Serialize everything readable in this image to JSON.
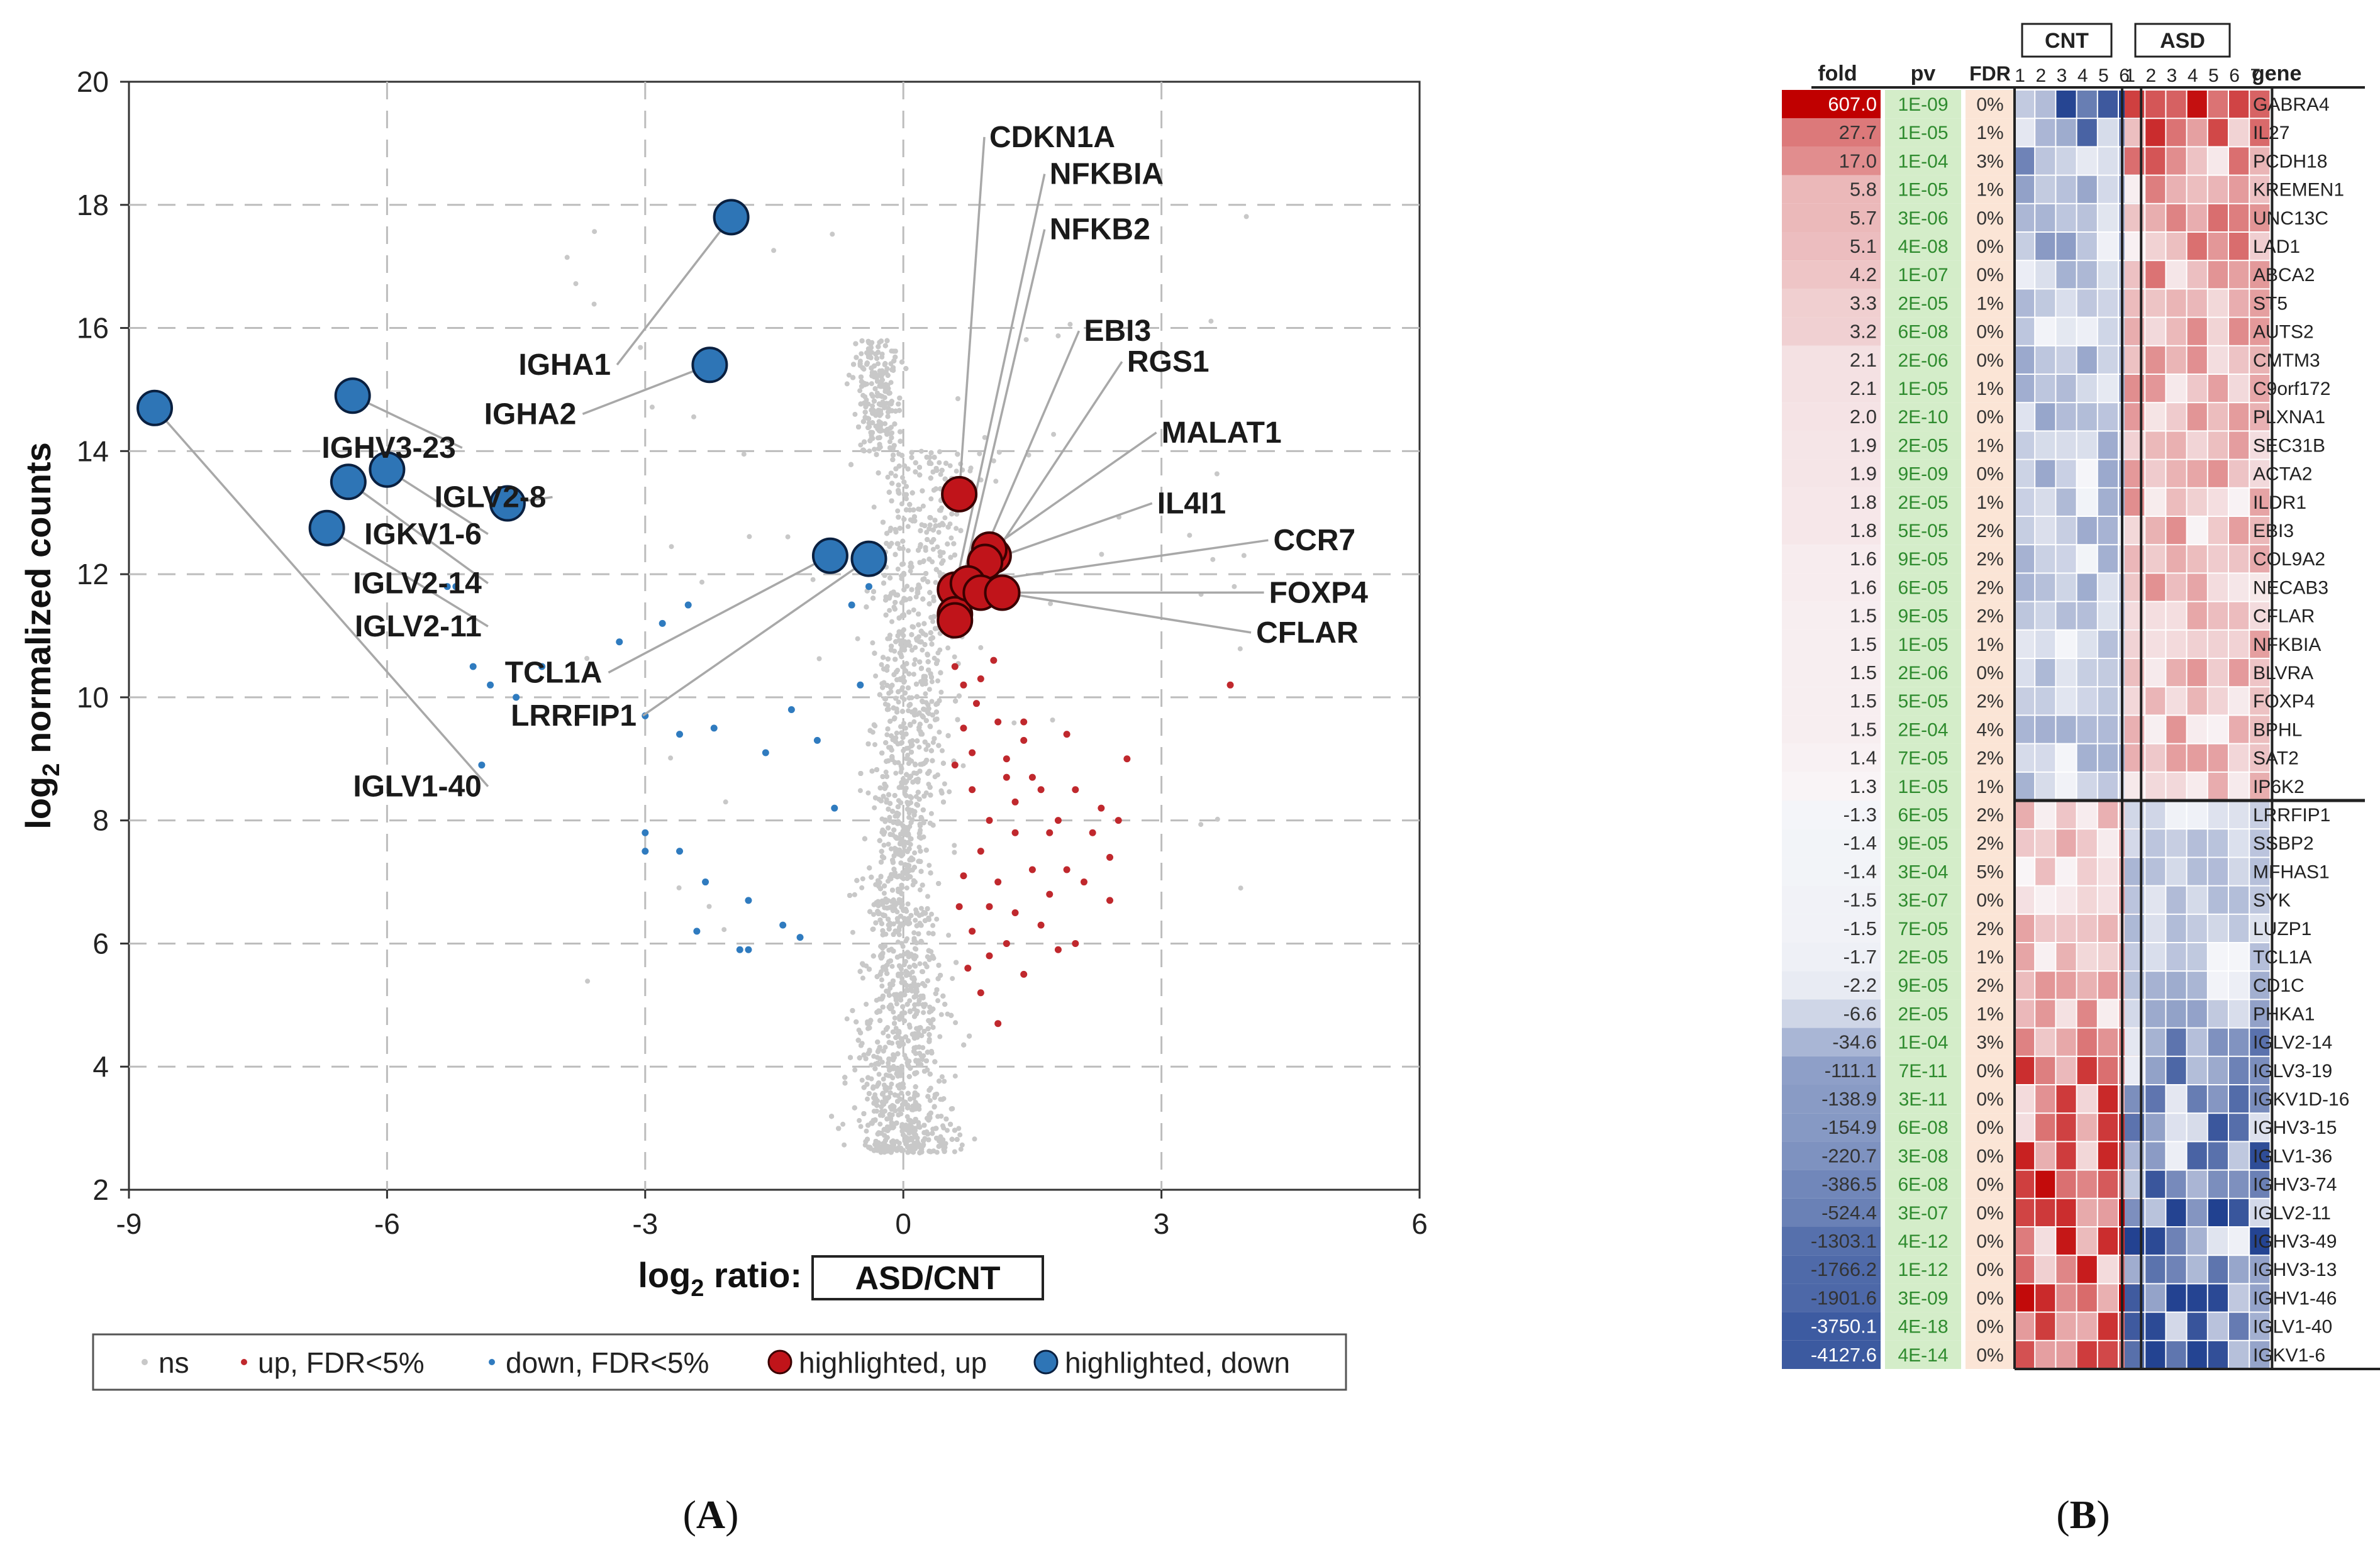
{
  "panel_a": {
    "panel_label": "A",
    "chart_data": {
      "type": "scatter",
      "title": "",
      "xlabel_prefix": "log",
      "xlabel_sub": "2",
      "xlabel_rest": " ratio:",
      "xlabel_box": "ASD/CNT",
      "ylabel_prefix": "log",
      "ylabel_sub": "2",
      "ylabel_rest": " normalized counts",
      "xlim": [
        -9,
        6
      ],
      "ylim": [
        2,
        20
      ],
      "xticks": [
        "-9",
        "-6",
        "-3",
        "0",
        "3",
        "6"
      ],
      "yticks": [
        "2",
        "4",
        "6",
        "8",
        "10",
        "12",
        "14",
        "16",
        "18",
        "20"
      ],
      "grid": true,
      "legend_position": "bottom",
      "legend": [
        "ns",
        "up, FDR<5%",
        "down, FDR<5%",
        "highlighted, up",
        "highlighted, down"
      ],
      "colors": {
        "ns": "#c8c8c8",
        "up": "#c0282d",
        "down": "#2f7bbf",
        "hl_up": "#c0141a",
        "hl_down": "#2e75b6"
      },
      "highlighted_down": [
        {
          "gene": "IGHA1",
          "x": -2.0,
          "y": 17.8,
          "lx": -3.4,
          "ly": 15.3
        },
        {
          "gene": "IGHA2",
          "x": -2.25,
          "y": 15.4,
          "lx": -3.8,
          "ly": 14.5
        },
        {
          "gene": "IGHV3-23",
          "x": -6.4,
          "y": 14.9,
          "lx": -5.2,
          "ly": 13.95
        },
        {
          "gene": "IGLV2-8",
          "x": -4.6,
          "y": 13.15,
          "lx": -4.15,
          "ly": 13.15
        },
        {
          "gene": "IGKV1-6",
          "x": -6.0,
          "y": 13.7,
          "lx": -4.9,
          "ly": 12.55
        },
        {
          "gene": "IGLV2-14",
          "x": -6.45,
          "y": 13.5,
          "lx": -4.9,
          "ly": 11.75
        },
        {
          "gene": "IGLV2-11",
          "x": -6.7,
          "y": 12.75,
          "lx": -4.9,
          "ly": 11.05
        },
        {
          "gene": "TCL1A",
          "x": -0.85,
          "y": 12.3,
          "lx": -3.5,
          "ly": 10.3
        },
        {
          "gene": "LRRFIP1",
          "x": -0.4,
          "y": 12.25,
          "lx": -3.1,
          "ly": 9.6
        },
        {
          "gene": "IGLV1-40",
          "x": -8.7,
          "y": 14.7,
          "lx": -4.9,
          "ly": 8.45
        }
      ],
      "highlighted_up": [
        {
          "gene": "CDKN1A",
          "x": 0.65,
          "y": 13.3,
          "lx": 1.0,
          "ly": 19.0
        },
        {
          "gene": "NFKBIA",
          "x": 0.6,
          "y": 11.75,
          "lx": 1.7,
          "ly": 18.4
        },
        {
          "gene": "NFKB2",
          "x": 0.6,
          "y": 11.35,
          "lx": 1.7,
          "ly": 17.5
        },
        {
          "gene": "EBI3",
          "x": 0.6,
          "y": 11.25,
          "lx": 2.1,
          "ly": 15.85
        },
        {
          "gene": "RGS1",
          "x": 1.05,
          "y": 12.3,
          "lx": 2.6,
          "ly": 15.35
        },
        {
          "gene": "MALAT1",
          "x": 1.0,
          "y": 12.4,
          "lx": 3.0,
          "ly": 14.2
        },
        {
          "gene": "IL4I1",
          "x": 0.95,
          "y": 12.2,
          "lx": 2.95,
          "ly": 13.05
        },
        {
          "gene": "CCR7",
          "x": 0.75,
          "y": 11.85,
          "lx": 4.3,
          "ly": 12.45
        },
        {
          "gene": "FOXP4",
          "x": 0.9,
          "y": 11.7,
          "lx": 4.25,
          "ly": 11.6
        },
        {
          "gene": "CFLAR",
          "x": 1.15,
          "y": 11.7,
          "lx": 4.1,
          "ly": 10.95
        }
      ],
      "up_points": [
        [
          0.6,
          10.5
        ],
        [
          0.7,
          10.2
        ],
        [
          0.9,
          10.3
        ],
        [
          1.1,
          9.6
        ],
        [
          1.2,
          9.0
        ],
        [
          1.4,
          9.6
        ],
        [
          0.8,
          8.5
        ],
        [
          1.0,
          8.0
        ],
        [
          1.3,
          8.3
        ],
        [
          1.6,
          8.5
        ],
        [
          1.8,
          8.0
        ],
        [
          2.0,
          8.5
        ],
        [
          2.2,
          7.8
        ],
        [
          1.5,
          7.2
        ],
        [
          1.7,
          6.8
        ],
        [
          2.4,
          6.7
        ],
        [
          2.5,
          8.0
        ],
        [
          3.8,
          10.2
        ],
        [
          0.7,
          9.5
        ],
        [
          0.9,
          7.5
        ],
        [
          1.1,
          7.0
        ],
        [
          1.3,
          6.5
        ],
        [
          0.8,
          6.2
        ],
        [
          1.0,
          5.8
        ],
        [
          1.2,
          6.0
        ],
        [
          1.4,
          5.5
        ],
        [
          1.1,
          4.7
        ],
        [
          0.9,
          5.2
        ],
        [
          2.0,
          6.0
        ],
        [
          1.9,
          7.2
        ],
        [
          2.3,
          8.2
        ],
        [
          2.6,
          9.0
        ],
        [
          0.6,
          8.9
        ],
        [
          0.8,
          9.1
        ],
        [
          1.5,
          8.7
        ],
        [
          1.7,
          7.8
        ],
        [
          2.1,
          7.0
        ],
        [
          1.3,
          7.8
        ],
        [
          1.6,
          6.3
        ],
        [
          0.7,
          7.1
        ],
        [
          0.65,
          6.6
        ],
        [
          0.75,
          5.6
        ],
        [
          1.2,
          8.7
        ],
        [
          1.4,
          9.3
        ],
        [
          1.9,
          9.4
        ],
        [
          0.85,
          9.9
        ],
        [
          1.05,
          10.6
        ],
        [
          2.4,
          7.4
        ],
        [
          1.8,
          5.9
        ],
        [
          1.0,
          6.6
        ]
      ],
      "down_points": [
        [
          -5.3,
          11.8
        ],
        [
          -5.2,
          11.8
        ],
        [
          -5.0,
          10.5
        ],
        [
          -4.8,
          10.2
        ],
        [
          -4.5,
          10.0
        ],
        [
          -4.2,
          10.5
        ],
        [
          -3.3,
          10.9
        ],
        [
          -2.8,
          11.2
        ],
        [
          -3.0,
          9.7
        ],
        [
          -2.6,
          9.4
        ],
        [
          -2.2,
          9.5
        ],
        [
          -1.3,
          9.8
        ],
        [
          -0.5,
          10.2
        ],
        [
          -0.6,
          11.5
        ],
        [
          -0.4,
          11.8
        ],
        [
          -0.8,
          8.2
        ],
        [
          -1.0,
          9.3
        ],
        [
          -4.9,
          8.9
        ],
        [
          -3.0,
          7.8
        ],
        [
          -3.0,
          7.5
        ],
        [
          -2.6,
          7.5
        ],
        [
          -2.3,
          7.0
        ],
        [
          -1.8,
          6.7
        ],
        [
          -1.4,
          6.3
        ],
        [
          -1.2,
          6.1
        ],
        [
          -1.8,
          5.9
        ],
        [
          -1.9,
          5.9
        ],
        [
          -2.4,
          6.2
        ],
        [
          -2.5,
          11.5
        ],
        [
          -1.6,
          9.1
        ]
      ],
      "ns_points_count": 9000
    }
  },
  "panel_b": {
    "panel_label": "B",
    "chart_data": {
      "type": "heatmap",
      "group_labels": [
        "CNT",
        "ASD"
      ],
      "col_headers": {
        "fold": "fold",
        "pv": "pv",
        "fdr": "FDR",
        "gene": "gene"
      },
      "cnt_samples": [
        "1",
        "2",
        "3",
        "4",
        "5",
        "6"
      ],
      "asd_samples": [
        "1",
        "2",
        "3",
        "4",
        "5",
        "6",
        "7"
      ],
      "up_rows": [
        {
          "fold": "607.0",
          "pv": "1E-09",
          "fdr": "0%",
          "gene": "GABRA4"
        },
        {
          "fold": "27.7",
          "pv": "1E-05",
          "fdr": "1%",
          "gene": "IL27"
        },
        {
          "fold": "17.0",
          "pv": "1E-04",
          "fdr": "3%",
          "gene": "PCDH18"
        },
        {
          "fold": "5.8",
          "pv": "1E-05",
          "fdr": "1%",
          "gene": "KREMEN1"
        },
        {
          "fold": "5.7",
          "pv": "3E-06",
          "fdr": "0%",
          "gene": "UNC13C"
        },
        {
          "fold": "5.1",
          "pv": "4E-08",
          "fdr": "0%",
          "gene": "LAD1"
        },
        {
          "fold": "4.2",
          "pv": "1E-07",
          "fdr": "0%",
          "gene": "ABCA2"
        },
        {
          "fold": "3.3",
          "pv": "2E-05",
          "fdr": "1%",
          "gene": "ST5"
        },
        {
          "fold": "3.2",
          "pv": "6E-08",
          "fdr": "0%",
          "gene": "AUTS2"
        },
        {
          "fold": "2.1",
          "pv": "2E-06",
          "fdr": "0%",
          "gene": "CMTM3"
        },
        {
          "fold": "2.1",
          "pv": "1E-05",
          "fdr": "1%",
          "gene": "C9orf172"
        },
        {
          "fold": "2.0",
          "pv": "2E-10",
          "fdr": "0%",
          "gene": "PLXNA1"
        },
        {
          "fold": "1.9",
          "pv": "2E-05",
          "fdr": "1%",
          "gene": "SEC31B"
        },
        {
          "fold": "1.9",
          "pv": "9E-09",
          "fdr": "0%",
          "gene": "ACTA2"
        },
        {
          "fold": "1.8",
          "pv": "2E-05",
          "fdr": "1%",
          "gene": "ILDR1"
        },
        {
          "fold": "1.8",
          "pv": "5E-05",
          "fdr": "2%",
          "gene": "EBI3"
        },
        {
          "fold": "1.6",
          "pv": "9E-05",
          "fdr": "2%",
          "gene": "COL9A2"
        },
        {
          "fold": "1.6",
          "pv": "6E-05",
          "fdr": "2%",
          "gene": "NECAB3"
        },
        {
          "fold": "1.5",
          "pv": "9E-05",
          "fdr": "2%",
          "gene": "CFLAR"
        },
        {
          "fold": "1.5",
          "pv": "1E-05",
          "fdr": "1%",
          "gene": "NFKBIA"
        },
        {
          "fold": "1.5",
          "pv": "2E-06",
          "fdr": "0%",
          "gene": "BLVRA"
        },
        {
          "fold": "1.5",
          "pv": "5E-05",
          "fdr": "2%",
          "gene": "FOXP4"
        },
        {
          "fold": "1.5",
          "pv": "2E-04",
          "fdr": "4%",
          "gene": "BPHL"
        },
        {
          "fold": "1.4",
          "pv": "7E-05",
          "fdr": "2%",
          "gene": "SAT2"
        },
        {
          "fold": "1.3",
          "pv": "1E-05",
          "fdr": "1%",
          "gene": "IP6K2"
        }
      ],
      "down_rows": [
        {
          "fold": "-1.3",
          "pv": "6E-05",
          "fdr": "2%",
          "gene": "LRRFIP1"
        },
        {
          "fold": "-1.4",
          "pv": "9E-05",
          "fdr": "2%",
          "gene": "SSBP2"
        },
        {
          "fold": "-1.4",
          "pv": "3E-04",
          "fdr": "5%",
          "gene": "MFHAS1"
        },
        {
          "fold": "-1.5",
          "pv": "3E-07",
          "fdr": "0%",
          "gene": "SYK"
        },
        {
          "fold": "-1.5",
          "pv": "7E-05",
          "fdr": "2%",
          "gene": "LUZP1"
        },
        {
          "fold": "-1.7",
          "pv": "2E-05",
          "fdr": "1%",
          "gene": "TCL1A"
        },
        {
          "fold": "-2.2",
          "pv": "9E-05",
          "fdr": "2%",
          "gene": "CD1C"
        },
        {
          "fold": "-6.6",
          "pv": "2E-05",
          "fdr": "1%",
          "gene": "PHKA1"
        },
        {
          "fold": "-34.6",
          "pv": "1E-04",
          "fdr": "3%",
          "gene": "IGLV2-14"
        },
        {
          "fold": "-111.1",
          "pv": "7E-11",
          "fdr": "0%",
          "gene": "IGLV3-19"
        },
        {
          "fold": "-138.9",
          "pv": "3E-11",
          "fdr": "0%",
          "gene": "IGKV1D-16"
        },
        {
          "fold": "-154.9",
          "pv": "6E-08",
          "fdr": "0%",
          "gene": "IGHV3-15"
        },
        {
          "fold": "-220.7",
          "pv": "3E-08",
          "fdr": "0%",
          "gene": "IGLV1-36"
        },
        {
          "fold": "-386.5",
          "pv": "6E-08",
          "fdr": "0%",
          "gene": "IGHV3-74"
        },
        {
          "fold": "-524.4",
          "pv": "3E-07",
          "fdr": "0%",
          "gene": "IGLV2-11"
        },
        {
          "fold": "-1303.1",
          "pv": "4E-12",
          "fdr": "0%",
          "gene": "IGHV3-49"
        },
        {
          "fold": "-1766.2",
          "pv": "1E-12",
          "fdr": "0%",
          "gene": "IGHV3-13"
        },
        {
          "fold": "-1901.6",
          "pv": "3E-09",
          "fdr": "0%",
          "gene": "IGHV1-46"
        },
        {
          "fold": "-3750.1",
          "pv": "4E-18",
          "fdr": "0%",
          "gene": "IGLV1-40"
        },
        {
          "fold": "-4127.6",
          "pv": "4E-14",
          "fdr": "0%",
          "gene": "IGKV1-6"
        }
      ],
      "colors": {
        "red": "#c00000",
        "blue": "#1f3f8f",
        "pv_bg": "#d4edc9",
        "pv_text": "#2e8b2e",
        "fdr_bg": "#fbe5d6"
      }
    }
  }
}
